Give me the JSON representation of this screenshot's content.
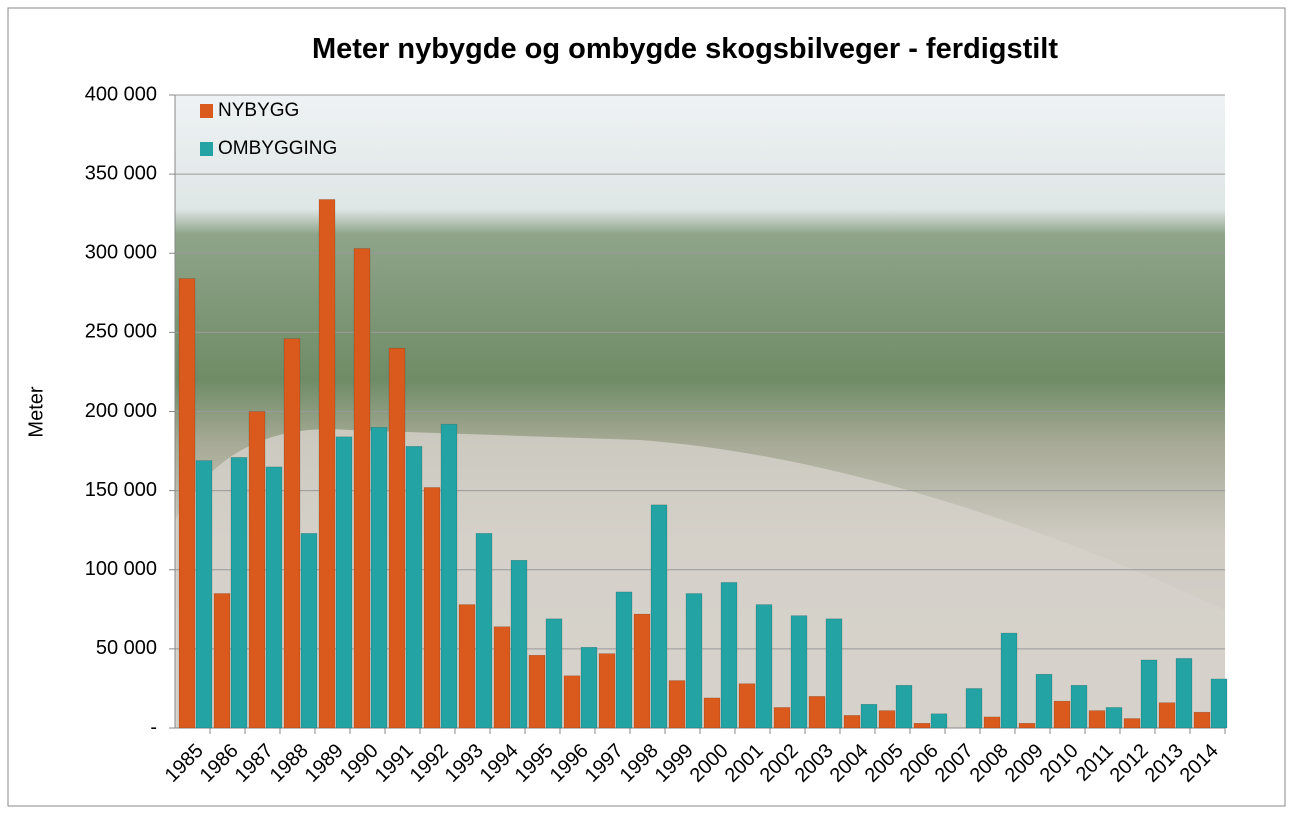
{
  "chart_data": {
    "type": "bar",
    "title": "Meter nybygde og ombygde skogsbilveger - ferdigstilt",
    "y_label": "Meter",
    "categories": [
      "1985",
      "1986",
      "1987",
      "1988",
      "1989",
      "1990",
      "1991",
      "1992",
      "1993",
      "1994",
      "1995",
      "1996",
      "1997",
      "1998",
      "1999",
      "2000",
      "2001",
      "2002",
      "2003",
      "2004",
      "2005",
      "2006",
      "2007",
      "2008",
      "2009",
      "2010",
      "2011",
      "2012",
      "2013",
      "2014"
    ],
    "series": [
      {
        "name": "NYBYGG",
        "color": "#d95a1c",
        "values": [
          284000,
          85000,
          200000,
          246000,
          334000,
          303000,
          240000,
          152000,
          78000,
          64000,
          46000,
          33000,
          47000,
          72000,
          30000,
          19000,
          28000,
          13000,
          20000,
          8000,
          11000,
          3000,
          0,
          7000,
          3000,
          17000,
          11000,
          6000,
          16000,
          10000
        ]
      },
      {
        "name": "OMBYGGING",
        "color": "#23a3a3",
        "values": [
          169000,
          171000,
          165000,
          123000,
          184000,
          190000,
          178000,
          192000,
          123000,
          106000,
          69000,
          51000,
          86000,
          141000,
          85000,
          92000,
          78000,
          71000,
          69000,
          15000,
          27000,
          9000,
          25000,
          60000,
          34000,
          27000,
          13000,
          43000,
          44000,
          31000
        ]
      }
    ],
    "ylim": [
      0,
      400000
    ],
    "yticks": [
      {
        "value": 0,
        "label": "-"
      },
      {
        "value": 50000,
        "label": "50 000"
      },
      {
        "value": 100000,
        "label": "100 000"
      },
      {
        "value": 150000,
        "label": "150 000"
      },
      {
        "value": 200000,
        "label": "200 000"
      },
      {
        "value": 250000,
        "label": "250 000"
      },
      {
        "value": 300000,
        "label": "300 000"
      },
      {
        "value": 350000,
        "label": "350 000"
      },
      {
        "value": 400000,
        "label": "400 000"
      }
    ],
    "grid": true,
    "legend": "top-left"
  }
}
